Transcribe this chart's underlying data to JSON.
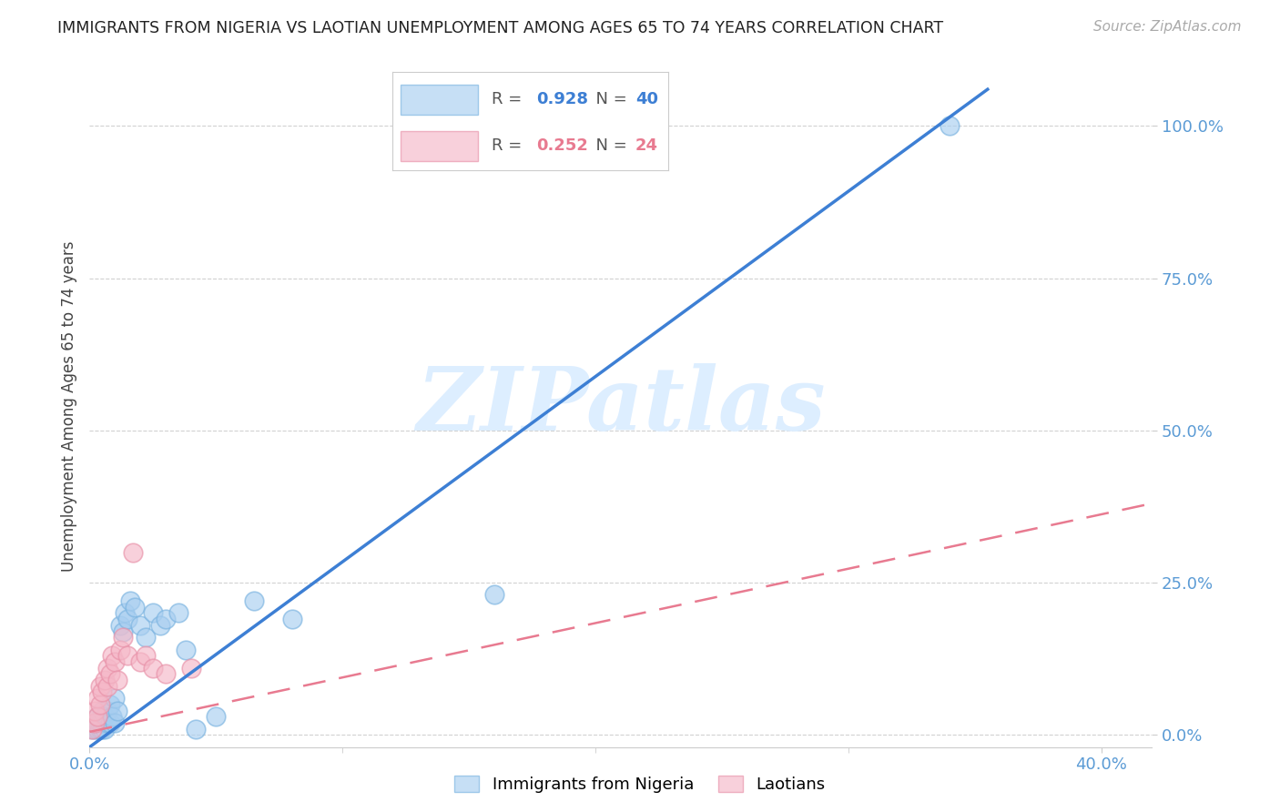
{
  "title": "IMMIGRANTS FROM NIGERIA VS LAOTIAN UNEMPLOYMENT AMONG AGES 65 TO 74 YEARS CORRELATION CHART",
  "source": "Source: ZipAtlas.com",
  "ylabel": "Unemployment Among Ages 65 to 74 years",
  "xlabel_blue": "Immigrants from Nigeria",
  "xlabel_pink": "Laotians",
  "blue_R": 0.928,
  "blue_N": 40,
  "pink_R": 0.252,
  "pink_N": 24,
  "xlim": [
    0.0,
    0.42
  ],
  "ylim": [
    -0.02,
    1.1
  ],
  "ytick_positions": [
    0.0,
    0.25,
    0.5,
    0.75,
    1.0
  ],
  "ytick_labels": [
    "0.0%",
    "25.0%",
    "50.0%",
    "75.0%",
    "100.0%"
  ],
  "xtick_positions": [
    0.0,
    0.4
  ],
  "xtick_labels": [
    "0.0%",
    "40.0%"
  ],
  "blue_color": "#a8cef0",
  "blue_edge_color": "#7ab3e0",
  "pink_color": "#f5b8c8",
  "pink_edge_color": "#e891a8",
  "blue_line_color": "#3d7fd4",
  "pink_line_color": "#e87a90",
  "right_tick_color": "#5b9bd5",
  "watermark_color": "#ddeeff",
  "background_color": "#ffffff",
  "blue_line_x0": 0.0,
  "blue_line_y0": -0.02,
  "blue_line_x1": 0.355,
  "blue_line_y1": 1.06,
  "pink_line_x0": 0.0,
  "pink_line_y0": 0.005,
  "pink_line_x1": 0.42,
  "pink_line_y1": 0.38,
  "blue_scatter_x": [
    0.001,
    0.002,
    0.002,
    0.003,
    0.003,
    0.003,
    0.004,
    0.004,
    0.005,
    0.005,
    0.005,
    0.006,
    0.006,
    0.007,
    0.007,
    0.008,
    0.008,
    0.009,
    0.01,
    0.01,
    0.011,
    0.012,
    0.013,
    0.014,
    0.015,
    0.016,
    0.018,
    0.02,
    0.022,
    0.025,
    0.028,
    0.03,
    0.035,
    0.038,
    0.042,
    0.05,
    0.065,
    0.08,
    0.16,
    0.34
  ],
  "blue_scatter_y": [
    0.01,
    0.01,
    0.02,
    0.01,
    0.02,
    0.03,
    0.01,
    0.02,
    0.01,
    0.02,
    0.04,
    0.01,
    0.03,
    0.02,
    0.04,
    0.02,
    0.05,
    0.03,
    0.02,
    0.06,
    0.04,
    0.18,
    0.17,
    0.2,
    0.19,
    0.22,
    0.21,
    0.18,
    0.16,
    0.2,
    0.18,
    0.19,
    0.2,
    0.14,
    0.01,
    0.03,
    0.22,
    0.19,
    0.23,
    1.0
  ],
  "pink_scatter_x": [
    0.001,
    0.002,
    0.002,
    0.003,
    0.003,
    0.004,
    0.004,
    0.005,
    0.006,
    0.007,
    0.007,
    0.008,
    0.009,
    0.01,
    0.011,
    0.012,
    0.013,
    0.015,
    0.017,
    0.02,
    0.022,
    0.025,
    0.03,
    0.04
  ],
  "pink_scatter_y": [
    0.01,
    0.02,
    0.04,
    0.03,
    0.06,
    0.05,
    0.08,
    0.07,
    0.09,
    0.08,
    0.11,
    0.1,
    0.13,
    0.12,
    0.09,
    0.14,
    0.16,
    0.13,
    0.3,
    0.12,
    0.13,
    0.11,
    0.1,
    0.11
  ]
}
